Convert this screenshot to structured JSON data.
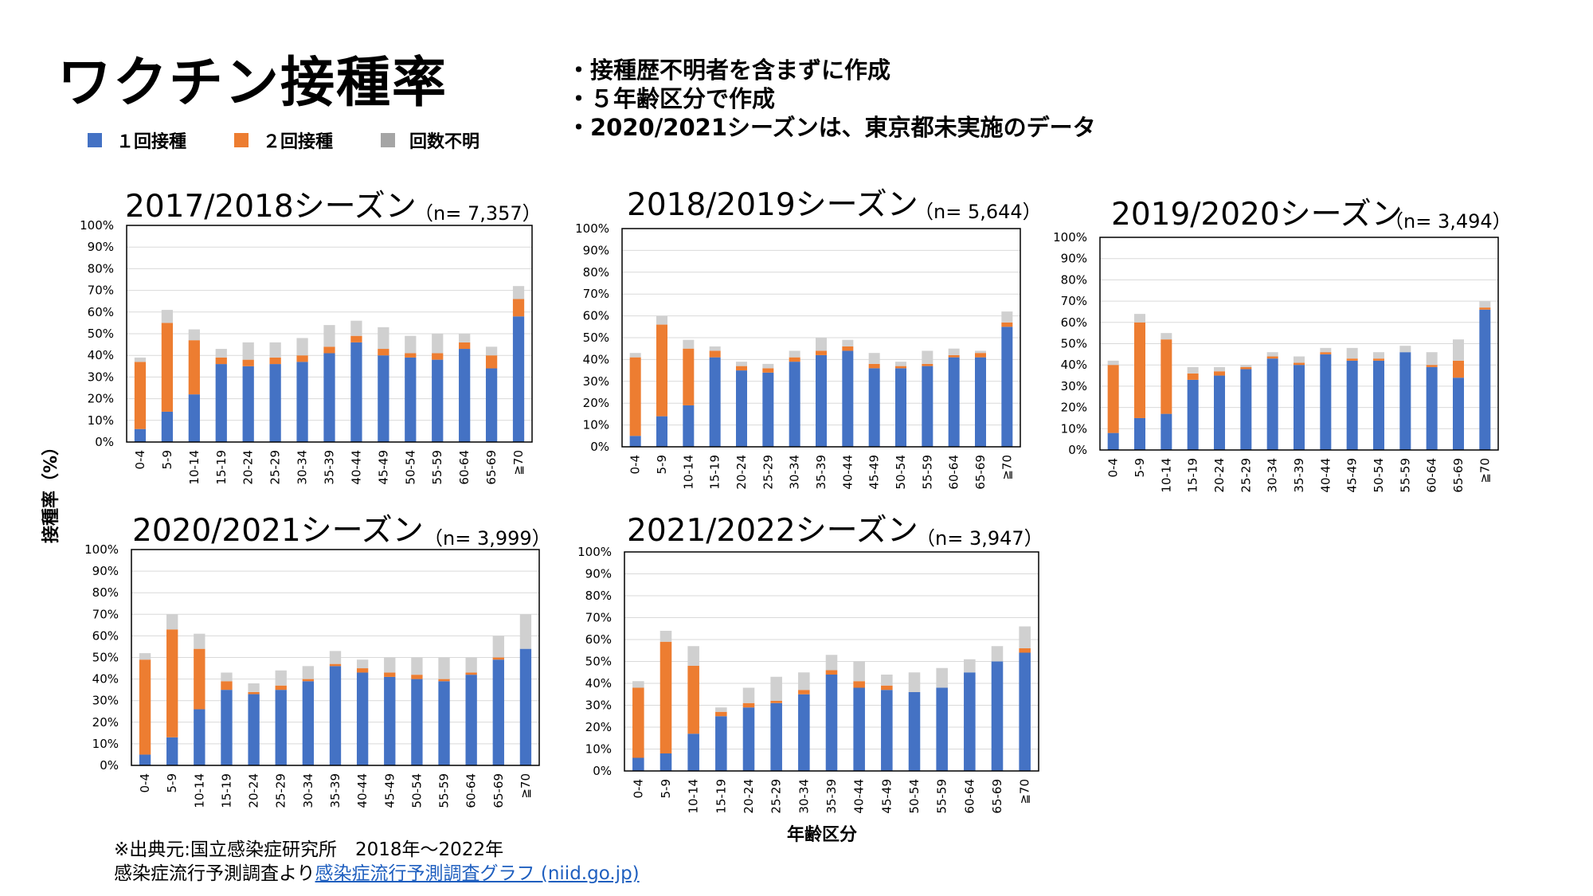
{
  "page": {
    "title": "ワクチン接種率",
    "notes": [
      "・接種歴不明者を含まずに作成",
      "・５年齢区分で作成",
      "・2020/2021シーズンは、東京都未実施のデータ"
    ],
    "y_axis_title": "接種率（%）",
    "x_axis_title": "年齢区分",
    "source_line1": "※出典元:国立感染症研究所　2018年～2022年",
    "source_line2_prefix": "感染症流行予測調査より",
    "source_link": "感染症流行予測調査グラフ (niid.go.jp)"
  },
  "legend": [
    {
      "label": "１回接種",
      "color": "#4472c4"
    },
    {
      "label": "２回接種",
      "color": "#ed7d31"
    },
    {
      "label": "回数不明",
      "color": "#a5a5a5"
    }
  ],
  "colors": {
    "dose1": "#4472c4",
    "dose2": "#ed7d31",
    "unknown": "#d0d0d0",
    "grid": "#d9d9d9"
  },
  "chart_data": [
    {
      "type": "bar",
      "stacked": true,
      "title": "2017/2018シーズン",
      "n_label": "（n= 7,357）",
      "categories": [
        "0-4",
        "5-9",
        "10-14",
        "15-19",
        "20-24",
        "25-29",
        "30-34",
        "35-39",
        "40-44",
        "45-49",
        "50-54",
        "55-59",
        "60-64",
        "65-69",
        "≧70"
      ],
      "series": [
        {
          "name": "１回接種",
          "values": [
            6,
            14,
            22,
            36,
            35,
            36,
            37,
            41,
            46,
            40,
            39,
            38,
            43,
            34,
            58
          ]
        },
        {
          "name": "２回接種",
          "values": [
            31,
            41,
            25,
            3,
            3,
            3,
            3,
            3,
            3,
            3,
            2,
            3,
            3,
            6,
            8
          ]
        },
        {
          "name": "回数不明",
          "values": [
            2,
            6,
            5,
            4,
            8,
            7,
            8,
            10,
            7,
            10,
            8,
            9,
            4,
            4,
            6
          ]
        }
      ],
      "ylim": [
        0,
        100
      ],
      "yticks": [
        "0%",
        "10%",
        "20%",
        "30%",
        "40%",
        "50%",
        "60%",
        "70%",
        "80%",
        "90%",
        "100%"
      ],
      "grid": true
    },
    {
      "type": "bar",
      "stacked": true,
      "title": "2018/2019シーズン",
      "n_label": "（n= 5,644）",
      "categories": [
        "0-4",
        "5-9",
        "10-14",
        "15-19",
        "20-24",
        "25-29",
        "30-34",
        "35-39",
        "40-44",
        "45-49",
        "50-54",
        "55-59",
        "60-64",
        "65-69",
        "≧70"
      ],
      "series": [
        {
          "name": "１回接種",
          "values": [
            5,
            14,
            19,
            41,
            35,
            34,
            39,
            42,
            44,
            36,
            36,
            37,
            41,
            41,
            55
          ]
        },
        {
          "name": "２回接種",
          "values": [
            36,
            42,
            26,
            3,
            2,
            2,
            2,
            2,
            2,
            2,
            1,
            1,
            1,
            2,
            2
          ]
        },
        {
          "name": "回数不明",
          "values": [
            2,
            4,
            4,
            2,
            2,
            2,
            3,
            6,
            3,
            5,
            2,
            6,
            3,
            1,
            5
          ]
        }
      ],
      "ylim": [
        0,
        100
      ],
      "yticks": [
        "0%",
        "10%",
        "20%",
        "30%",
        "40%",
        "50%",
        "60%",
        "70%",
        "80%",
        "90%",
        "100%"
      ],
      "grid": true
    },
    {
      "type": "bar",
      "stacked": true,
      "title": "2019/2020シーズン",
      "n_label": "（n= 3,494）",
      "categories": [
        "0-4",
        "5-9",
        "10-14",
        "15-19",
        "20-24",
        "25-29",
        "30-34",
        "35-39",
        "40-44",
        "45-49",
        "50-54",
        "55-59",
        "60-64",
        "65-69",
        "≧70"
      ],
      "series": [
        {
          "name": "１回接種",
          "values": [
            8,
            15,
            17,
            33,
            35,
            38,
            43,
            40,
            45,
            42,
            42,
            46,
            39,
            34,
            66
          ]
        },
        {
          "name": "２回接種",
          "values": [
            32,
            45,
            35,
            3,
            2,
            1,
            1,
            1,
            1,
            1,
            1,
            0,
            1,
            8,
            1
          ]
        },
        {
          "name": "回数不明",
          "values": [
            2,
            4,
            3,
            3,
            2,
            1,
            2,
            3,
            2,
            5,
            3,
            3,
            6,
            10,
            3
          ]
        }
      ],
      "ylim": [
        0,
        100
      ],
      "yticks": [
        "0%",
        "10%",
        "20%",
        "30%",
        "40%",
        "50%",
        "60%",
        "70%",
        "80%",
        "90%",
        "100%"
      ],
      "grid": true
    },
    {
      "type": "bar",
      "stacked": true,
      "title": "2020/2021シーズン",
      "n_label": "（n= 3,999）",
      "categories": [
        "0-4",
        "5-9",
        "10-14",
        "15-19",
        "20-24",
        "25-29",
        "30-34",
        "35-39",
        "40-44",
        "45-49",
        "50-54",
        "55-59",
        "60-64",
        "65-69",
        "≧70"
      ],
      "series": [
        {
          "name": "１回接種",
          "values": [
            5,
            13,
            26,
            35,
            33,
            35,
            39,
            46,
            43,
            41,
            40,
            39,
            42,
            49,
            54
          ]
        },
        {
          "name": "２回接種",
          "values": [
            44,
            50,
            28,
            4,
            1,
            2,
            1,
            1,
            2,
            2,
            2,
            1,
            1,
            1,
            0
          ]
        },
        {
          "name": "回数不明",
          "values": [
            3,
            7,
            7,
            4,
            4,
            7,
            6,
            6,
            4,
            7,
            8,
            10,
            7,
            10,
            16
          ]
        }
      ],
      "ylim": [
        0,
        100
      ],
      "yticks": [
        "0%",
        "10%",
        "20%",
        "30%",
        "40%",
        "50%",
        "60%",
        "70%",
        "80%",
        "90%",
        "100%"
      ],
      "grid": true
    },
    {
      "type": "bar",
      "stacked": true,
      "title": "2021/2022シーズン",
      "n_label": "（n= 3,947）",
      "categories": [
        "0-4",
        "5-9",
        "10-14",
        "15-19",
        "20-24",
        "25-29",
        "30-34",
        "35-39",
        "40-44",
        "45-49",
        "50-54",
        "55-59",
        "60-64",
        "65-69",
        "≧70"
      ],
      "series": [
        {
          "name": "１回接種",
          "values": [
            6,
            8,
            17,
            25,
            29,
            31,
            35,
            44,
            38,
            37,
            36,
            38,
            45,
            50,
            54
          ]
        },
        {
          "name": "２回接種",
          "values": [
            32,
            51,
            31,
            2,
            2,
            1,
            2,
            2,
            3,
            2,
            0,
            0,
            0,
            0,
            2
          ]
        },
        {
          "name": "回数不明",
          "values": [
            3,
            5,
            9,
            2,
            7,
            11,
            8,
            7,
            9,
            5,
            9,
            9,
            6,
            7,
            10
          ]
        }
      ],
      "ylim": [
        0,
        100
      ],
      "yticks": [
        "0%",
        "10%",
        "20%",
        "30%",
        "40%",
        "50%",
        "60%",
        "70%",
        "80%",
        "90%",
        "100%"
      ],
      "grid": true
    }
  ]
}
